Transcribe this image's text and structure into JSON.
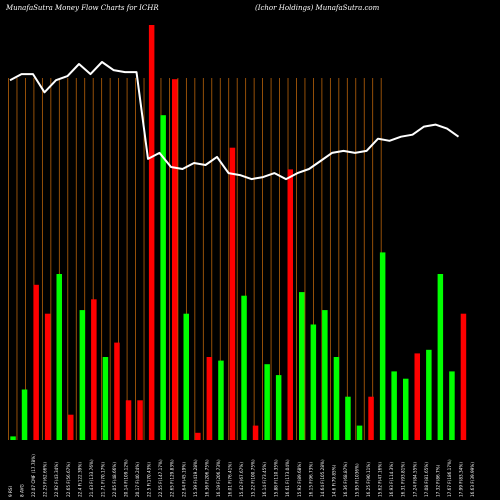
{
  "header": {
    "left": "MunafaSutra  Money Flow  Charts for ICHR",
    "right": "(Ichor Holdings) MunafaSutra.com"
  },
  "colors": {
    "background": "#000000",
    "up_bar": "#00ff00",
    "down_bar": "#ff0000",
    "vline": "#b8620a",
    "price_line": "#ffffff",
    "text": "#ffffff"
  },
  "chart_data": {
    "type": "bar",
    "categories": [
      "",
      "",
      "",
      "",
      "",
      "",
      "",
      "",
      "",
      "",
      "",
      "",
      "",
      "",
      "",
      "",
      "",
      "",
      "",
      "",
      "",
      "",
      "",
      "",
      "",
      "",
      "",
      "",
      "",
      "",
      "",
      "",
      "",
      "",
      "",
      "",
      "",
      "",
      "",
      "",
      "",
      "",
      "",
      "",
      "",
      "",
      "",
      "",
      "",
      "",
      "",
      ""
    ],
    "bars": [
      {
        "v": 0.01,
        "c": "up"
      },
      {
        "v": 0.14,
        "c": "up"
      },
      {
        "v": 0.43,
        "c": "down"
      },
      {
        "v": 0.35,
        "c": "down"
      },
      {
        "v": 0.46,
        "c": "up"
      },
      {
        "v": 0.07,
        "c": "down"
      },
      {
        "v": 0.36,
        "c": "up"
      },
      {
        "v": 0.39,
        "c": "down"
      },
      {
        "v": 0.23,
        "c": "up"
      },
      {
        "v": 0.27,
        "c": "down"
      },
      {
        "v": 0.11,
        "c": "down"
      },
      {
        "v": 0.11,
        "c": "down"
      },
      {
        "v": 1.15,
        "c": "down"
      },
      {
        "v": 0.9,
        "c": "up"
      },
      {
        "v": 1.0,
        "c": "down"
      },
      {
        "v": 0.35,
        "c": "up"
      },
      {
        "v": 0.02,
        "c": "down"
      },
      {
        "v": 0.23,
        "c": "down"
      },
      {
        "v": 0.22,
        "c": "up"
      },
      {
        "v": 0.81,
        "c": "down"
      },
      {
        "v": 0.4,
        "c": "up"
      },
      {
        "v": 0.04,
        "c": "down"
      },
      {
        "v": 0.21,
        "c": "up"
      },
      {
        "v": 0.18,
        "c": "up"
      },
      {
        "v": 0.75,
        "c": "down"
      },
      {
        "v": 0.41,
        "c": "up"
      },
      {
        "v": 0.32,
        "c": "up"
      },
      {
        "v": 0.36,
        "c": "up"
      },
      {
        "v": 0.23,
        "c": "up"
      },
      {
        "v": 0.12,
        "c": "up"
      },
      {
        "v": 0.04,
        "c": "up"
      },
      {
        "v": 0.12,
        "c": "down"
      },
      {
        "v": 0.52,
        "c": "up"
      },
      {
        "v": 0.19,
        "c": "up"
      },
      {
        "v": 0.17,
        "c": "up"
      },
      {
        "v": 0.24,
        "c": "down"
      },
      {
        "v": 0.25,
        "c": "up"
      },
      {
        "v": 0.46,
        "c": "up"
      },
      {
        "v": 0.19,
        "c": "up"
      },
      {
        "v": 0.35,
        "c": "down"
      }
    ],
    "price": [
      0.94,
      0.97,
      0.97,
      0.88,
      0.94,
      0.96,
      1.02,
      0.97,
      1.03,
      0.99,
      0.98,
      0.98,
      0.55,
      0.58,
      0.51,
      0.5,
      0.53,
      0.52,
      0.56,
      0.48,
      0.47,
      0.45,
      0.46,
      0.48,
      0.45,
      0.48,
      0.5,
      0.54,
      0.58,
      0.59,
      0.58,
      0.59,
      0.65,
      0.64,
      0.66,
      0.67,
      0.71,
      0.72,
      0.7,
      0.66
    ],
    "x_ticks": [
      "9 RSI",
      "8 AVG",
      "22.07 CMF (17.78%)",
      "22.23 F(62.66%)",
      "22.92 F(43.34%)",
      "22.65 F(56.67%)",
      "22.4 F(122.39%)",
      "21.43 F(133.76%)",
      "21.71 F(70.17%)",
      "22.05 F(48.66%)",
      "20.14 F(109.12%)",
      "20.17 F(40.24%)",
      "22.5 F(170.43%)",
      "22.55 F(147.17%)",
      "22.65 F(129.83%)",
      "22.64 F(45.19%)",
      "15.39 F(419.28%)",
      "16.36 F(206.75%)",
      "16.19 F(206.73%)",
      "16.01 F(76.41%)",
      "15.42 F(67.67%)",
      "15.22 F(100.75%)",
      "16.14 F(73.45%)",
      "15.88 F(110.35%)",
      "16.61 F(173.04%)",
      "15.92 F(89.68%)",
      "16.15 F(96.73%)",
      "14.64 F(105.28%)",
      "14.6 F(79.85%)",
      "16.36 F(68.87%)",
      "15.95 F(1036%)",
      "16.25 F(90.11%)",
      "15.62 F(47.16%)",
      "16.93 F(114.3%)",
      "16.31 F(93.81%)",
      "17.24 F(84.55%)",
      "17.08 F(81.65%)",
      "17.32 F(86.7%)",
      "17.67 F(186.17%)",
      "17.99 F(83.34%)",
      "16.63 F(39.99%)"
    ],
    "ylim": [
      0,
      1.2
    ],
    "grid": false
  }
}
